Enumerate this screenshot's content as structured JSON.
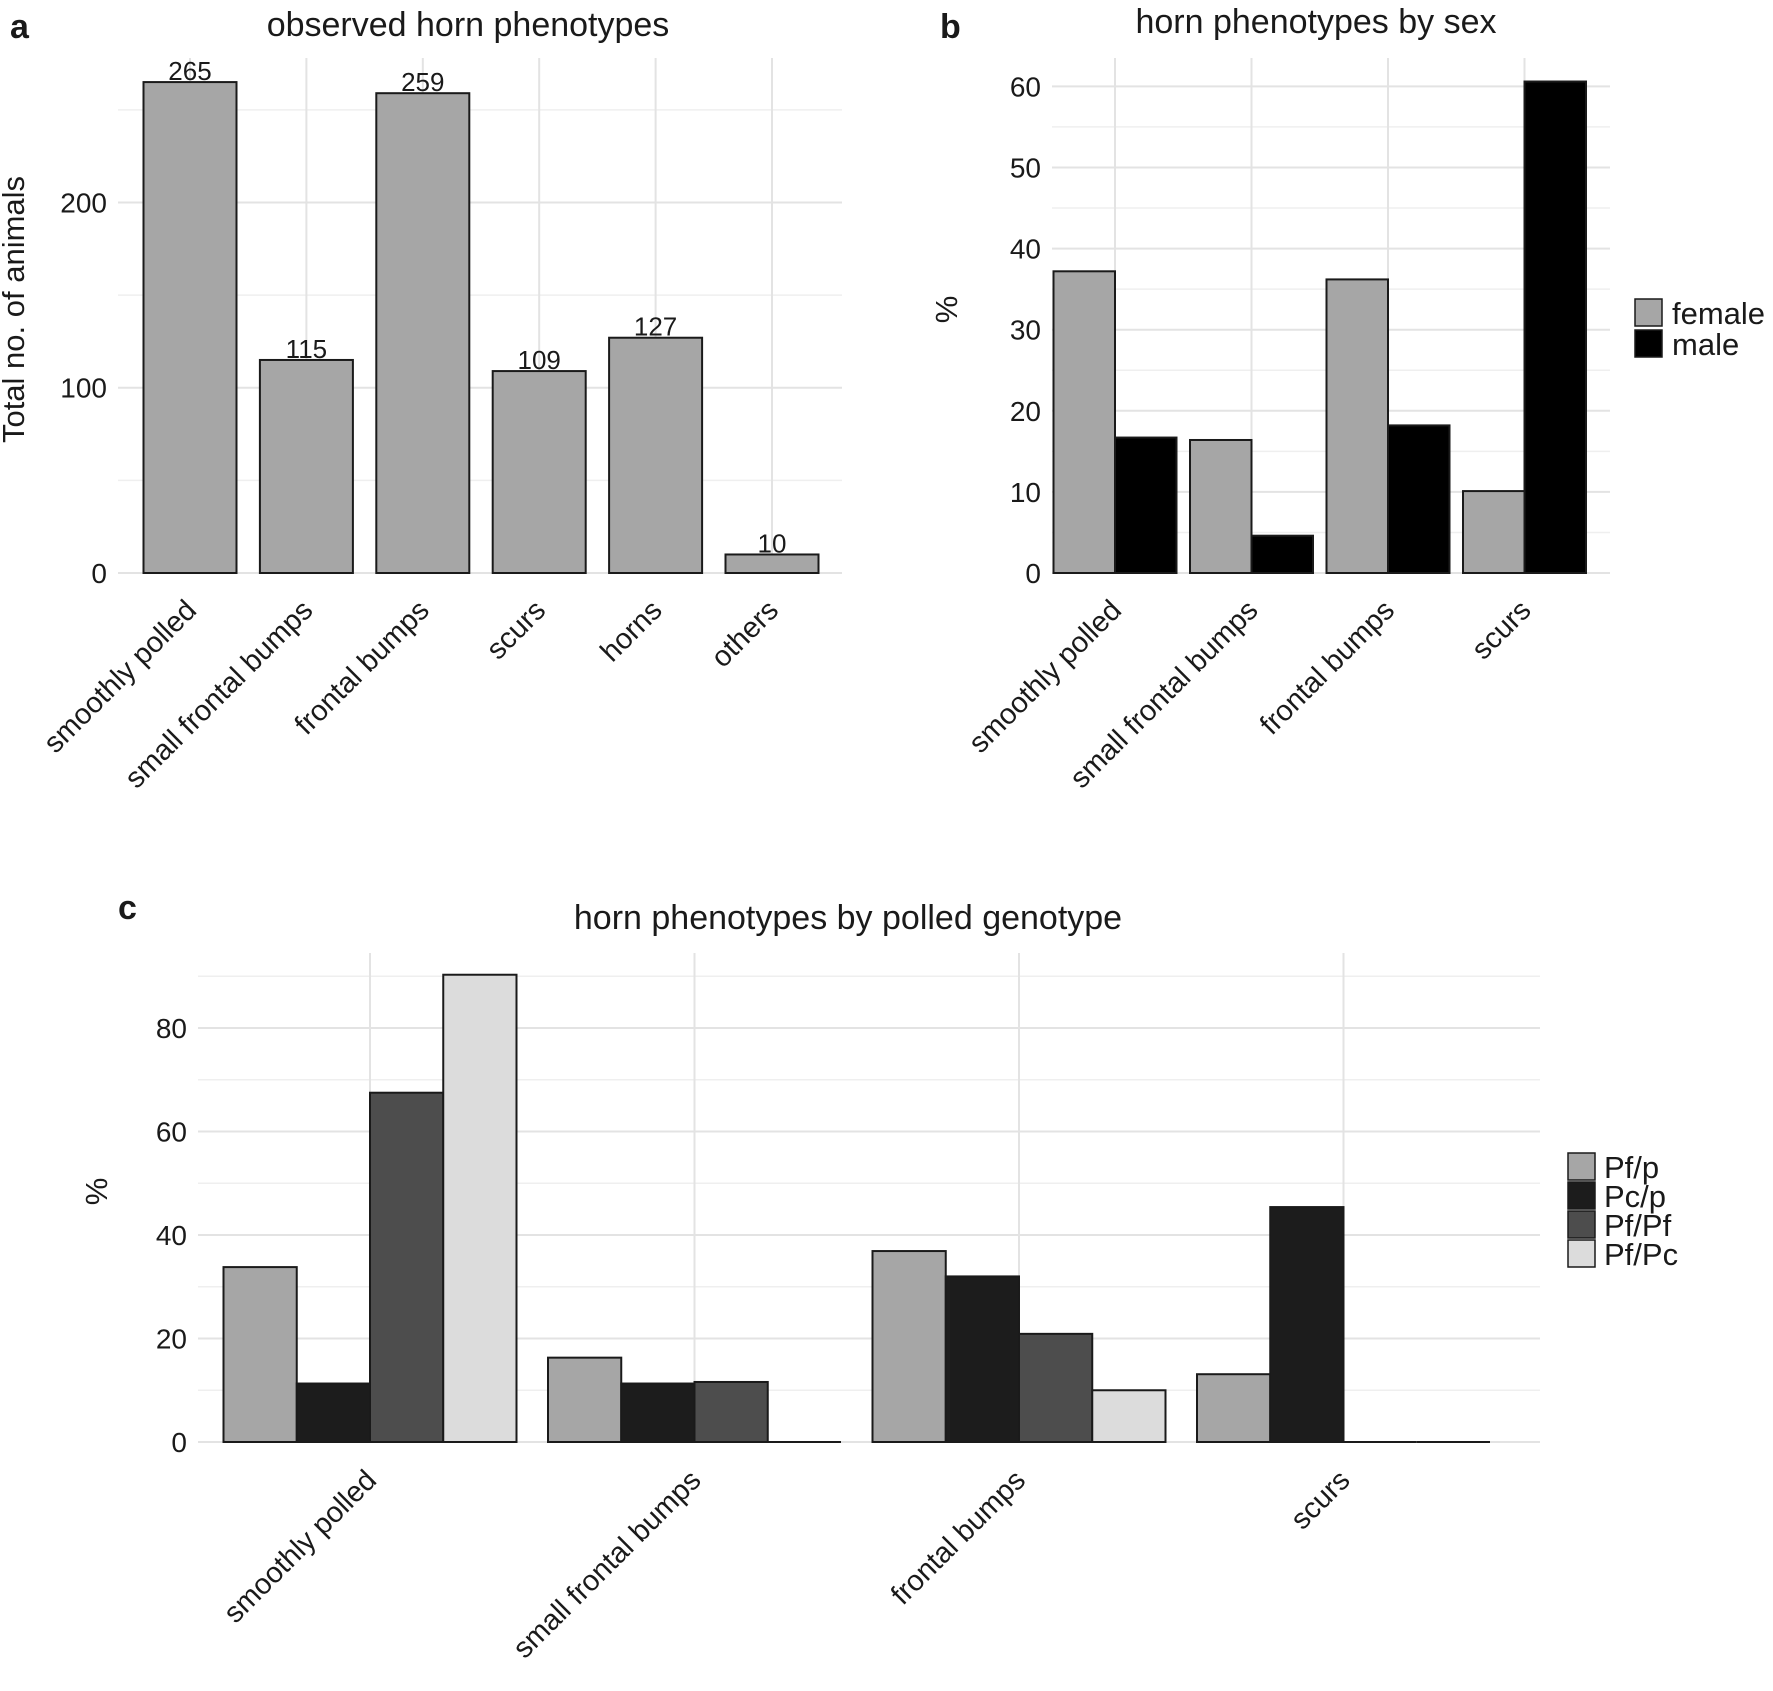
{
  "chart_data": [
    {
      "panel": "a",
      "type": "bar",
      "title": "observed horn phenotypes",
      "xlabel": "",
      "ylabel": "Total no. of animals",
      "categories": [
        "smoothly polled",
        "small frontal bumps",
        "frontal bumps",
        "scurs",
        "horns",
        "others"
      ],
      "values": [
        265,
        115,
        259,
        109,
        127,
        10
      ],
      "data_labels": [
        "265",
        "115",
        "259",
        "109",
        "127",
        "10"
      ],
      "yticks": [
        0,
        100,
        200
      ],
      "ytick_labels": [
        "0",
        "100",
        "200"
      ],
      "ylim": [
        0,
        278
      ],
      "bar_color": "#a6a6a6",
      "grid": true,
      "legend": "none"
    },
    {
      "panel": "b",
      "type": "bar",
      "title": "horn phenotypes by sex",
      "xlabel": "",
      "ylabel": "%",
      "categories": [
        "smoothly polled",
        "small frontal bumps",
        "frontal bumps",
        "scurs"
      ],
      "series": [
        {
          "name": "female",
          "color": "#a6a6a6",
          "values": [
            37.2,
            16.4,
            36.2,
            10.1
          ]
        },
        {
          "name": "male",
          "color": "#000000",
          "values": [
            16.7,
            4.6,
            18.2,
            60.6
          ]
        }
      ],
      "yticks": [
        0,
        10,
        20,
        30,
        40,
        50,
        60
      ],
      "ytick_labels": [
        "0",
        "10",
        "20",
        "30",
        "40",
        "50",
        "60"
      ],
      "ylim": [
        0,
        63.5
      ],
      "grid": true,
      "legend": "right"
    },
    {
      "panel": "c",
      "type": "bar",
      "title": "horn phenotypes by polled genotype",
      "xlabel": "",
      "ylabel": "%",
      "categories": [
        "smoothly polled",
        "small frontal bumps",
        "frontal bumps",
        "scurs"
      ],
      "series": [
        {
          "name": "Pf/p",
          "color": "#a6a6a6",
          "values": [
            33.8,
            16.3,
            36.9,
            13.1
          ]
        },
        {
          "name": "Pc/p",
          "color": "#1c1c1c",
          "values": [
            11.3,
            11.3,
            32.0,
            45.4
          ]
        },
        {
          "name": "Pf/Pf",
          "color": "#4d4d4d",
          "values": [
            67.5,
            11.6,
            20.9,
            0
          ]
        },
        {
          "name": "Pf/Pc",
          "color": "#dcdcdc",
          "values": [
            90.3,
            0,
            10.0,
            0
          ]
        }
      ],
      "yticks": [
        0,
        20,
        40,
        60,
        80
      ],
      "ytick_labels": [
        "0",
        "20",
        "40",
        "60",
        "80"
      ],
      "ylim": [
        0,
        94.5
      ],
      "grid": true,
      "legend": "right"
    }
  ]
}
